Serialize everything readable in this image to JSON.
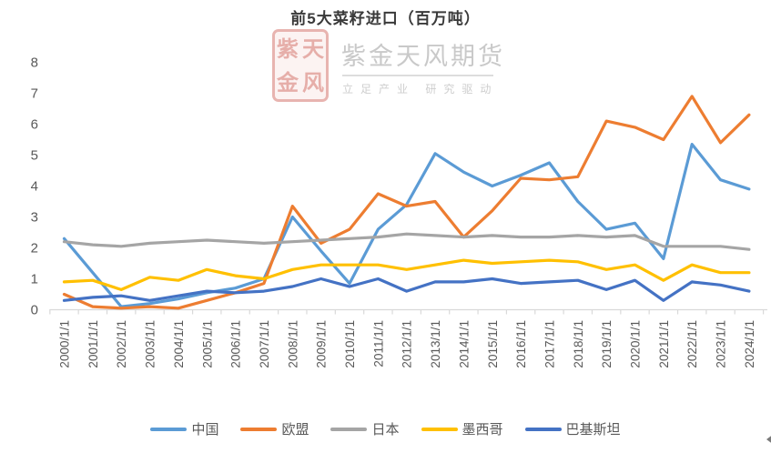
{
  "title": "前5大菜籽进口（百万吨）",
  "watermark": {
    "seal_chars": [
      "紫",
      "天",
      "金",
      "风"
    ],
    "brand": "紫金天风期货",
    "tagline": "立足产业 研究驱动"
  },
  "chart_data": {
    "type": "line",
    "title": "前5大菜籽进口（百万吨）",
    "xlabel": "",
    "ylabel": "",
    "ylim": [
      0,
      8
    ],
    "yticks": [
      0,
      1,
      2,
      3,
      4,
      5,
      6,
      7,
      8
    ],
    "grid": false,
    "legend_position": "bottom",
    "x": [
      "2000/1/1",
      "2001/1/1",
      "2002/1/1",
      "2003/1/1",
      "2004/1/1",
      "2005/1/1",
      "2006/1/1",
      "2007/1/1",
      "2008/1/1",
      "2009/1/1",
      "2010/1/1",
      "2011/1/1",
      "2012/1/1",
      "2013/1/1",
      "2014/1/1",
      "2015/1/1",
      "2016/1/1",
      "2017/1/1",
      "2018/1/1",
      "2019/1/1",
      "2020/1/1",
      "2021/1/1",
      "2022/1/1",
      "2023/1/1",
      "2024/1/1"
    ],
    "series": [
      {
        "name": "中国",
        "color": "#5B9BD5",
        "values": [
          2.3,
          1.2,
          0.1,
          0.2,
          0.35,
          0.55,
          0.7,
          1.0,
          3.0,
          1.9,
          0.85,
          2.6,
          3.4,
          5.05,
          4.45,
          4.0,
          4.35,
          4.75,
          3.5,
          2.6,
          2.8,
          1.65,
          5.35,
          4.2,
          3.9
        ]
      },
      {
        "name": "欧盟",
        "color": "#ED7D31",
        "values": [
          0.5,
          0.1,
          0.05,
          0.1,
          0.05,
          0.3,
          0.55,
          0.85,
          3.35,
          2.15,
          2.6,
          3.75,
          3.35,
          3.5,
          2.35,
          3.2,
          4.25,
          4.2,
          4.3,
          6.1,
          5.9,
          5.5,
          6.9,
          5.4,
          6.3
        ]
      },
      {
        "name": "日本",
        "color": "#A5A5A5",
        "values": [
          2.2,
          2.1,
          2.05,
          2.15,
          2.2,
          2.25,
          2.2,
          2.15,
          2.2,
          2.25,
          2.3,
          2.35,
          2.45,
          2.4,
          2.35,
          2.4,
          2.35,
          2.35,
          2.4,
          2.35,
          2.4,
          2.05,
          2.05,
          2.05,
          1.95
        ]
      },
      {
        "name": "墨西哥",
        "color": "#FFC000",
        "values": [
          0.9,
          0.95,
          0.65,
          1.05,
          0.95,
          1.3,
          1.1,
          1.0,
          1.3,
          1.45,
          1.45,
          1.45,
          1.3,
          1.45,
          1.6,
          1.5,
          1.55,
          1.6,
          1.55,
          1.3,
          1.45,
          0.95,
          1.45,
          1.2,
          1.2
        ]
      },
      {
        "name": "巴基斯坦",
        "color": "#4472C4",
        "values": [
          0.3,
          0.4,
          0.45,
          0.3,
          0.45,
          0.6,
          0.55,
          0.6,
          0.75,
          1.0,
          0.75,
          1.0,
          0.6,
          0.9,
          0.9,
          1.0,
          0.85,
          0.9,
          0.95,
          0.65,
          0.95,
          0.3,
          0.9,
          0.8,
          0.6
        ]
      }
    ]
  },
  "axis_colors": {
    "line": "#D9D9D9",
    "tick": "#D9D9D9",
    "label": "#595959"
  }
}
